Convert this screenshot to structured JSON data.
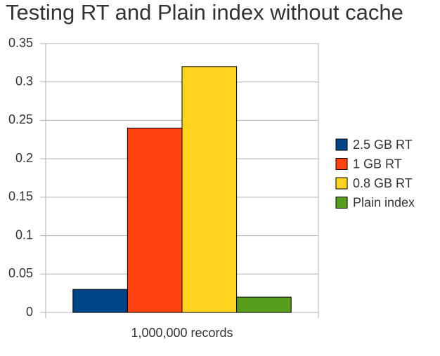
{
  "chart_data": {
    "type": "bar",
    "title": "Testing RT and Plain index without cache",
    "categories": [
      "1,000,000 records"
    ],
    "series": [
      {
        "name": "2.5 GB RT",
        "color": "#004586",
        "values": [
          0.03
        ]
      },
      {
        "name": "1 GB RT",
        "color": "#ff420e",
        "values": [
          0.24
        ]
      },
      {
        "name": "0.8 GB RT",
        "color": "#ffd320",
        "values": [
          0.32
        ]
      },
      {
        "name": "Plain index",
        "color": "#579d1c",
        "values": [
          0.02
        ]
      }
    ],
    "ylim": [
      0,
      0.35
    ],
    "yticks": [
      0,
      0.05,
      0.1,
      0.15,
      0.2,
      0.25,
      0.3,
      0.35
    ],
    "grid": true,
    "legend": "right"
  }
}
